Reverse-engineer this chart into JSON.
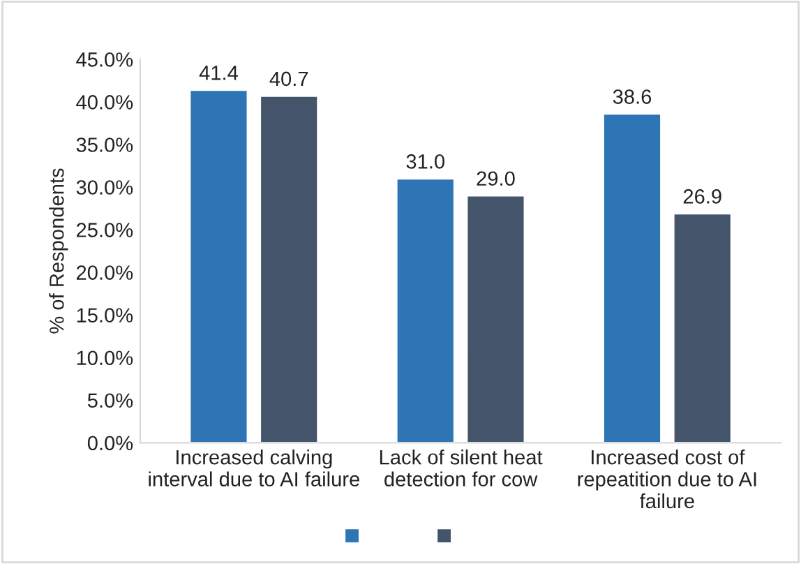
{
  "chart_data": {
    "type": "bar",
    "ylabel": "% of Respondents",
    "categories": [
      "Increased calving\ninterval due to AI failure",
      "Lack of silent heat\ndetection for cow",
      "Increased cost of\nrepeatition due to AI\nfailure"
    ],
    "series": [
      {
        "color": "#2e75b6",
        "values": [
          41.4,
          31.0,
          38.6
        ],
        "value_labels": [
          "41.4",
          "31.0",
          "38.6"
        ]
      },
      {
        "color": "#44546a",
        "values": [
          40.7,
          29.0,
          26.9
        ],
        "value_labels": [
          "40.7",
          "29.0",
          "26.9"
        ]
      }
    ],
    "ylim": [
      0,
      45
    ],
    "yticks": [
      {
        "value": 0,
        "label": "0.0%"
      },
      {
        "value": 5,
        "label": "5.0%"
      },
      {
        "value": 10,
        "label": "10.0%"
      },
      {
        "value": 15,
        "label": "15.0%"
      },
      {
        "value": 20,
        "label": "20.0%"
      },
      {
        "value": 25,
        "label": "25.0%"
      },
      {
        "value": 30,
        "label": "30.0%"
      },
      {
        "value": 35,
        "label": "35.0%"
      },
      {
        "value": 40,
        "label": "40.0%"
      },
      {
        "value": 45,
        "label": "45.0%"
      }
    ],
    "grid": false
  }
}
